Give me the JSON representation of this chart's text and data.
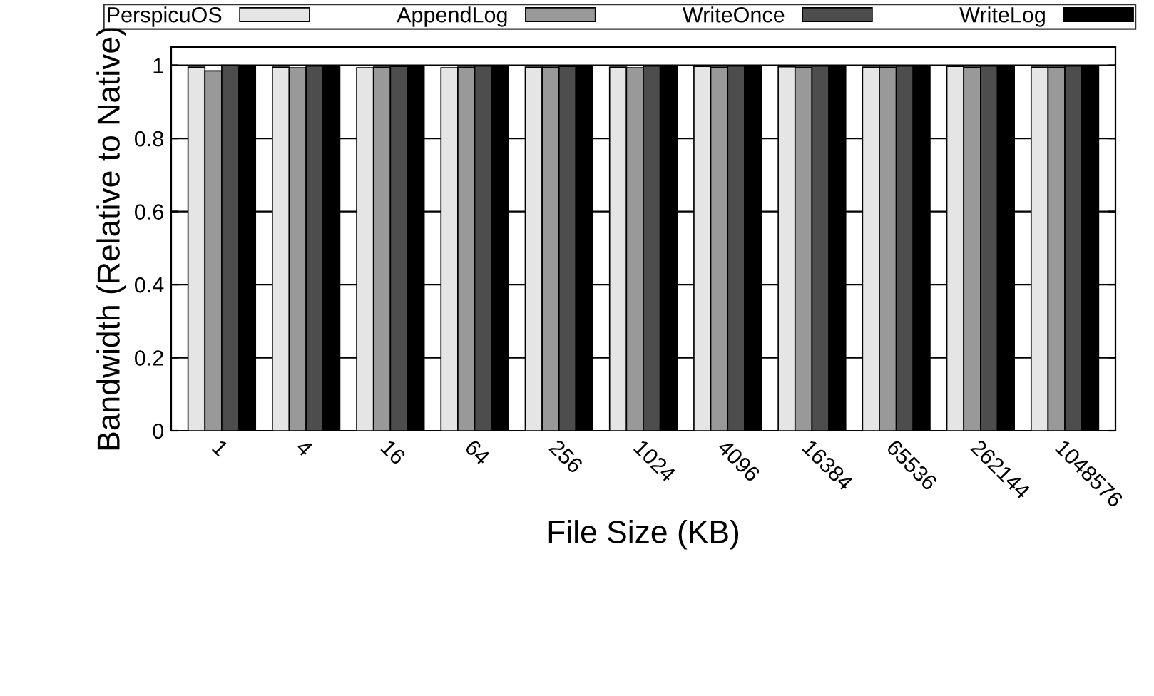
{
  "chart_data": {
    "type": "bar",
    "xlabel": "File Size (KB)",
    "ylabel": "Bandwidth (Relative to Native)",
    "categories": [
      "1",
      "4",
      "16",
      "64",
      "256",
      "1024",
      "4096",
      "16384",
      "65536",
      "262144",
      "1048576"
    ],
    "series": [
      {
        "name": "PerspicuOS",
        "color": "#e5e5e5",
        "values": [
          0.995,
          0.995,
          0.993,
          0.993,
          0.995,
          0.995,
          0.997,
          0.996,
          0.995,
          0.997,
          0.995
        ]
      },
      {
        "name": "AppendLog",
        "color": "#999999",
        "values": [
          0.985,
          0.993,
          0.995,
          0.995,
          0.995,
          0.993,
          0.995,
          0.995,
          0.995,
          0.995,
          0.995
        ]
      },
      {
        "name": "WriteOnce",
        "color": "#4d4d4d",
        "values": [
          1.0,
          0.998,
          0.997,
          0.998,
          0.997,
          0.998,
          0.998,
          0.998,
          0.998,
          0.998,
          0.998
        ]
      },
      {
        "name": "WriteLog",
        "color": "#000000",
        "values": [
          0.997,
          0.997,
          0.997,
          0.997,
          0.997,
          0.998,
          0.998,
          0.998,
          0.998,
          0.998,
          0.998
        ]
      }
    ],
    "ylim": [
      0,
      1.05
    ],
    "yticks": [
      0,
      0.2,
      0.4,
      0.6,
      0.8,
      1
    ],
    "grid": "y",
    "legend": "top"
  }
}
